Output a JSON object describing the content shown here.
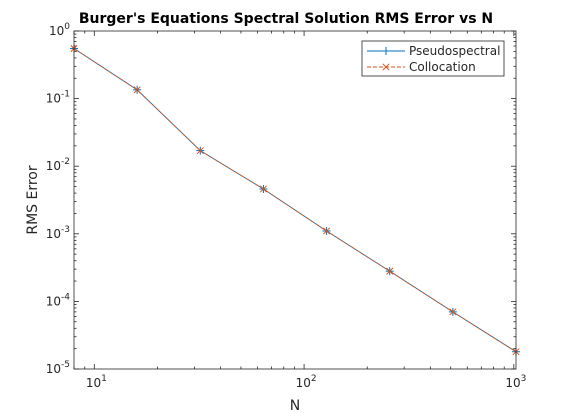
{
  "chart_data": {
    "type": "line",
    "title": "Burger's Equations Spectral Solution RMS Error vs N",
    "xlabel": "N",
    "ylabel": "RMS Error",
    "xscale": "log",
    "yscale": "log",
    "xlim": [
      8,
      1024
    ],
    "ylim": [
      1e-05,
      1
    ],
    "grid": false,
    "legend_position": "top-right",
    "x": [
      8,
      16,
      32,
      64,
      128,
      256,
      512,
      1024
    ],
    "series": [
      {
        "name": "Pseudospectral",
        "color": "#0072BD",
        "marker": "plus",
        "values": [
          0.55,
          0.135,
          0.017,
          0.0046,
          0.0011,
          0.00028,
          7e-05,
          1.8e-05
        ]
      },
      {
        "name": "Collocation",
        "color": "#D95319",
        "marker": "cross",
        "values": [
          0.55,
          0.135,
          0.017,
          0.0046,
          0.0011,
          0.00028,
          7e-05,
          1.8e-05
        ]
      }
    ],
    "x_ticks": [
      {
        "value": 10,
        "base": "10",
        "exp": "1"
      },
      {
        "value": 100,
        "base": "10",
        "exp": "2"
      },
      {
        "value": 1000,
        "base": "10",
        "exp": "3"
      }
    ],
    "y_ticks": [
      {
        "value": 1,
        "base": "10",
        "exp": "0"
      },
      {
        "value": 0.1,
        "base": "10",
        "exp": "-1"
      },
      {
        "value": 0.01,
        "base": "10",
        "exp": "-2"
      },
      {
        "value": 0.001,
        "base": "10",
        "exp": "-3"
      },
      {
        "value": 0.0001,
        "base": "10",
        "exp": "-4"
      },
      {
        "value": 1e-05,
        "base": "10",
        "exp": "-5"
      }
    ]
  }
}
